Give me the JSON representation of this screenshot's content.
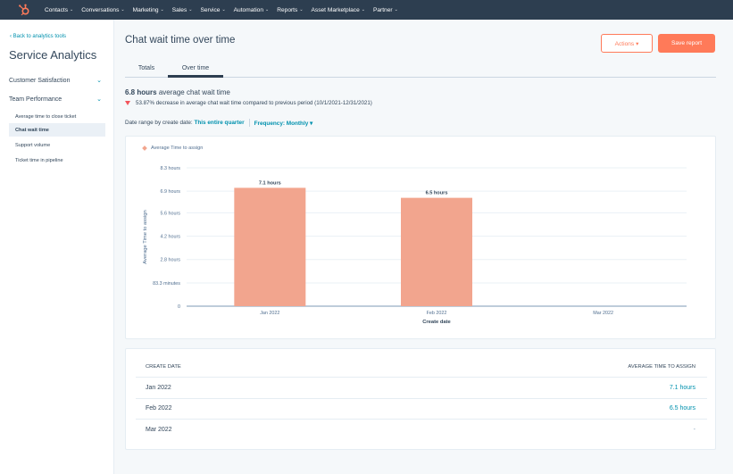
{
  "nav": {
    "items": [
      {
        "label": "Contacts",
        "chev": "⌄"
      },
      {
        "label": "Conversations",
        "chev": "⌄"
      },
      {
        "label": "Marketing",
        "chev": "⌄"
      },
      {
        "label": "Sales",
        "chev": "⌄"
      },
      {
        "label": "Service",
        "chev": "⌄"
      },
      {
        "label": "Automation",
        "chev": "⌄"
      },
      {
        "label": "Reports",
        "chev": "⌄"
      },
      {
        "label": "Asset Marketplace",
        "chev": "⌄"
      },
      {
        "label": "Partner",
        "chev": "⌄"
      }
    ]
  },
  "sidebar": {
    "back_link": "‹ Back to analytics tools",
    "title": "Service Analytics",
    "groups": [
      {
        "label": "Customer Satisfaction",
        "chev": "⌄"
      },
      {
        "label": "Team Performance",
        "chev": "⌄"
      }
    ],
    "sub_items": [
      {
        "label": "Average time to close ticket"
      },
      {
        "label": "Chat wait time"
      },
      {
        "label": "Support volume"
      },
      {
        "label": "Ticket time in pipeline"
      }
    ]
  },
  "header": {
    "title": "Chat wait time over time",
    "actions_label": "Actions ▾",
    "save_label": "Save report"
  },
  "tabs": [
    {
      "label": "Totals"
    },
    {
      "label": "Over time"
    }
  ],
  "summary": {
    "value": "6.8 hours",
    "text": "average chat wait time",
    "delta_text": "53.87% decrease in average chat wait time compared to previous period (10/1/2021-12/31/2021)"
  },
  "filters": {
    "date_label": "Date range by create date:",
    "date_value": "This entire quarter",
    "freq_label": "Frequency: Monthly ▾"
  },
  "chart_data": {
    "type": "bar",
    "legend": "Average Time to assign",
    "categories": [
      "Jan 2022",
      "Feb 2022",
      "Mar 2022"
    ],
    "values": [
      7.1,
      6.5,
      0
    ],
    "data_labels": [
      "7.1 hours",
      "6.5 hours",
      ""
    ],
    "y_ticks": [
      {
        "value": 0,
        "label": "0"
      },
      {
        "value": 1.39,
        "label": "83.3 minutes"
      },
      {
        "value": 2.8,
        "label": "2.8 hours"
      },
      {
        "value": 4.2,
        "label": "4.2 hours"
      },
      {
        "value": 5.6,
        "label": "5.6 hours"
      },
      {
        "value": 6.9,
        "label": "6.9 hours"
      },
      {
        "value": 8.3,
        "label": "8.3 hours"
      }
    ],
    "ylim": [
      0,
      8.3
    ],
    "xlabel": "Create date",
    "ylabel": "Average Time to assign",
    "bar_color": "#f2a58e",
    "grid": true,
    "legend_position": "top-left"
  },
  "table": {
    "headers": [
      "Create date",
      "Average time to assign"
    ],
    "rows": [
      {
        "date": "Jan 2022",
        "value": "7.1 hours"
      },
      {
        "date": "Feb 2022",
        "value": "6.5 hours"
      },
      {
        "date": "Mar 2022",
        "value": "-"
      }
    ]
  }
}
